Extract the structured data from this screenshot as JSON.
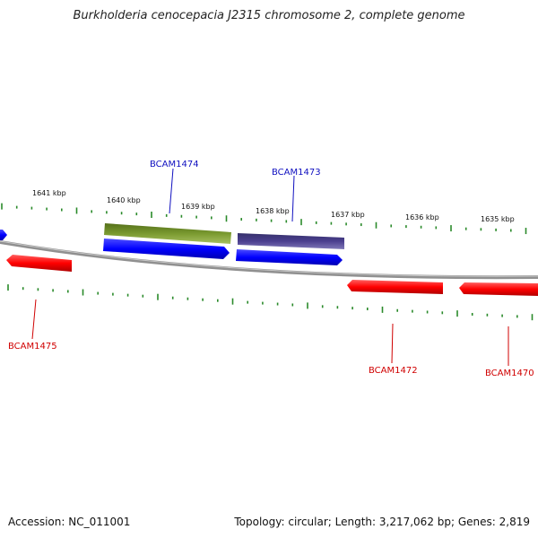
{
  "title": "Burkholderia cenocepacia J2315 chromosome 2, complete genome",
  "footer": {
    "accession": "Accession: NC_011001",
    "topology": "Topology: circular; Length: 3,217,062 bp; Genes: 2,819"
  },
  "ruler_labels": [
    "1641 kbp",
    "1640 kbp",
    "1639 kbp",
    "1638 kbp",
    "1637 kbp",
    "1636 kbp",
    "1635 kbp"
  ],
  "genes": {
    "forward": [
      "BCAM1474",
      "BCAM1473"
    ],
    "reverse": [
      "BCAM1475",
      "BCAM1472",
      "BCAM1470"
    ]
  },
  "colors": {
    "forward_label": "#1010c0",
    "reverse_label": "#d00000",
    "cds_forward": "#0000ff",
    "cds_reverse": "#ff0000",
    "feature_olive": "#6b8e23",
    "feature_purple": "#4b3f8f",
    "tick": "#2a8a2a",
    "backbone": "#808080"
  }
}
